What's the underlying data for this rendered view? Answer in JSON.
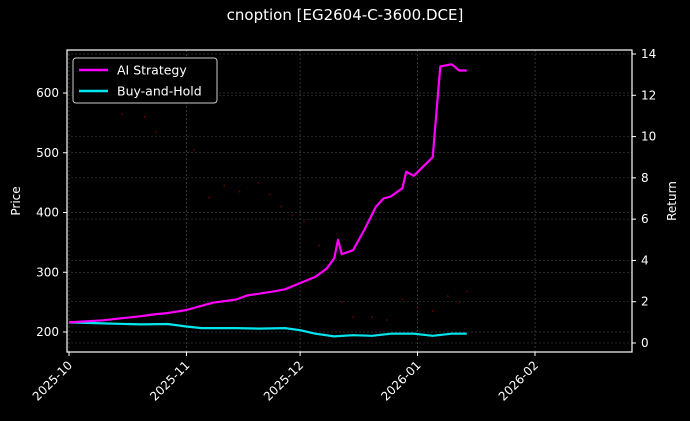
{
  "chart_data": {
    "type": "line",
    "title": "cnoption [EG2604-C-3600.DCE]",
    "xlabel": "",
    "ylabel_left": "Price",
    "ylabel_right": "Return",
    "x_ticks": [
      "2025-10",
      "2025-11",
      "2025-12",
      "2026-01",
      "2026-02"
    ],
    "y_left_ticks": [
      200,
      300,
      400,
      500,
      600
    ],
    "y_left_range": [
      168,
      670
    ],
    "y_right_ticks": [
      0,
      2,
      4,
      6,
      8,
      10,
      12,
      14
    ],
    "y_right_range": [
      -0.3,
      14.2
    ],
    "grid": true,
    "legend_position": "upper left",
    "legend": [
      "AI Strategy",
      "Buy-and-Hold"
    ],
    "series": [
      {
        "name": "AI Strategy",
        "axis": "right",
        "color": "#ff00ff",
        "dates": [
          "2025-10-01",
          "2025-10-10",
          "2025-10-15",
          "2025-10-20",
          "2025-10-24",
          "2025-10-27",
          "2025-11-01",
          "2025-11-05",
          "2025-11-08",
          "2025-11-14",
          "2025-11-17",
          "2025-11-24",
          "2025-11-27",
          "2025-12-01",
          "2025-12-05",
          "2025-12-08",
          "2025-12-10",
          "2025-12-11",
          "2025-12-12",
          "2025-12-15",
          "2025-12-18",
          "2025-12-21",
          "2025-12-23",
          "2025-12-25",
          "2025-12-28",
          "2025-12-29",
          "2025-12-31",
          "2026-01-05",
          "2026-01-07",
          "2026-01-10",
          "2026-01-12",
          "2026-01-14"
        ],
        "values": [
          1.0,
          1.1,
          1.2,
          1.3,
          1.4,
          1.45,
          1.6,
          1.8,
          1.95,
          2.1,
          2.3,
          2.5,
          2.6,
          2.9,
          3.2,
          3.6,
          4.1,
          5.0,
          4.3,
          4.5,
          5.5,
          6.6,
          7.0,
          7.1,
          7.5,
          8.3,
          8.1,
          9.0,
          13.4,
          13.5,
          13.2,
          13.2
        ]
      },
      {
        "name": "Buy-and-Hold",
        "axis": "right",
        "color": "#00e5ee",
        "dates": [
          "2025-10-01",
          "2025-10-10",
          "2025-10-20",
          "2025-10-27",
          "2025-11-01",
          "2025-11-05",
          "2025-11-10",
          "2025-11-14",
          "2025-11-20",
          "2025-11-27",
          "2025-12-01",
          "2025-12-05",
          "2025-12-10",
          "2025-12-15",
          "2025-12-20",
          "2025-12-25",
          "2025-12-31",
          "2026-01-05",
          "2026-01-10",
          "2026-01-14"
        ],
        "values": [
          1.0,
          0.95,
          0.9,
          0.92,
          0.8,
          0.72,
          0.72,
          0.72,
          0.7,
          0.72,
          0.62,
          0.45,
          0.32,
          0.38,
          0.35,
          0.45,
          0.45,
          0.35,
          0.45,
          0.45
        ]
      },
      {
        "name": "Price (faint dots)",
        "axis": "left",
        "color": "#5a0000",
        "dates": [
          "2025-10-15",
          "2025-10-21",
          "2025-10-24",
          "2025-11-03",
          "2025-11-07",
          "2025-11-11",
          "2025-11-15",
          "2025-11-20",
          "2025-11-23",
          "2025-11-26",
          "2025-11-29",
          "2025-12-02",
          "2025-12-06",
          "2025-12-08",
          "2025-12-12",
          "2025-12-15",
          "2025-12-20",
          "2025-12-24",
          "2025-12-28",
          "2026-01-01",
          "2026-01-05",
          "2026-01-09",
          "2026-01-12",
          "2026-01-14"
        ],
        "values": [
          565,
          560,
          535,
          505,
          425,
          445,
          435,
          450,
          430,
          410,
          395,
          385,
          345,
          305,
          250,
          225,
          225,
          220,
          255,
          240,
          235,
          260,
          250,
          268
        ]
      }
    ]
  }
}
